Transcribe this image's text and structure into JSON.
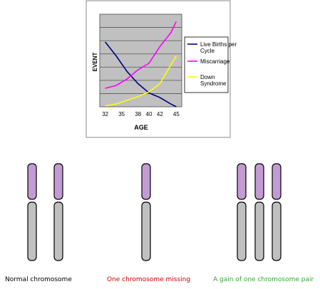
{
  "chart_data": {
    "type": "line",
    "xlabel": "AGE",
    "ylabel": "EVENT",
    "categories": [
      "32",
      "35",
      "38",
      "40",
      "42",
      "45"
    ],
    "x": [
      32,
      34,
      36,
      38,
      40,
      42,
      44,
      45
    ],
    "ylim": [
      0,
      100
    ],
    "grid": true,
    "legend": "right",
    "series": [
      {
        "name": "Live Births per Cycle",
        "color": "#000080",
        "values": [
          70,
          55,
          38,
          25,
          15,
          10,
          3,
          0
        ]
      },
      {
        "name": "Miscarriage",
        "color": "#ff00ff",
        "values": [
          20,
          23,
          30,
          40,
          47,
          65,
          80,
          92
        ]
      },
      {
        "name": "Down Syndrome",
        "color": "#ffff00",
        "values": [
          1,
          3,
          7,
          11,
          16,
          25,
          45,
          55
        ]
      }
    ]
  },
  "chromosomes": {
    "arm_color": "#c39bd3",
    "body_color": "#c0c0c0",
    "groups": [
      {
        "count": 2,
        "label": "Normal chromosome",
        "label_color": "#000000"
      },
      {
        "count": 1,
        "label": "One chromosome missing",
        "label_color": "#cc0000"
      },
      {
        "count": 3,
        "label": "A gain of one chromosome pair",
        "label_color": "#33aa33"
      }
    ]
  }
}
